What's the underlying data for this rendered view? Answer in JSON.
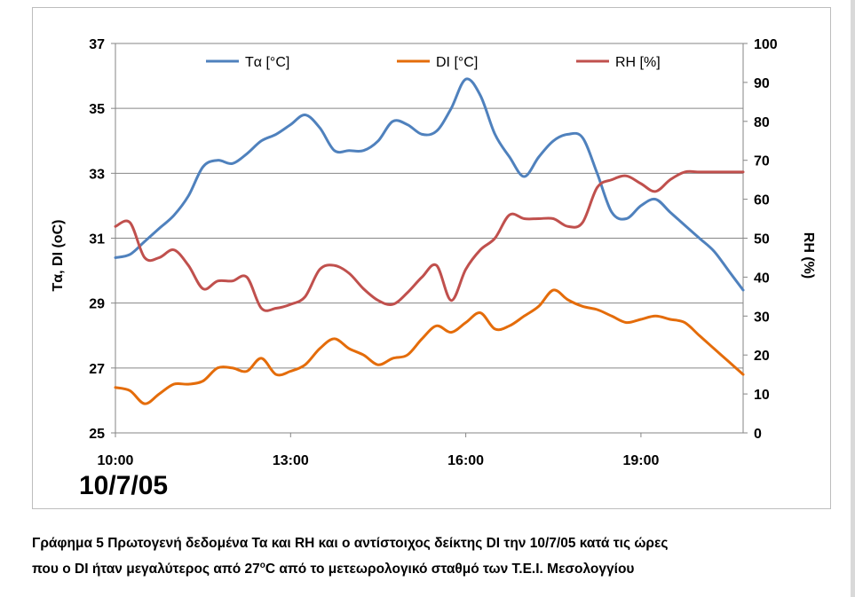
{
  "chart_data": {
    "type": "line",
    "x_ticks": [
      "10:00",
      "13:00",
      "16:00",
      "19:00"
    ],
    "y_left": {
      "label": "Tα, DI (oC)",
      "range": [
        25,
        37
      ],
      "ticks": [
        "25",
        "27",
        "29",
        "31",
        "33",
        "35",
        "37"
      ]
    },
    "y_right": {
      "label": "RH (%)",
      "range": [
        0,
        100
      ],
      "ticks": [
        "0",
        "10",
        "20",
        "30",
        "40",
        "50",
        "60",
        "70",
        "80",
        "90",
        "100"
      ]
    },
    "grid": true,
    "legend_position": "top",
    "annotation": "10/7/05",
    "series": [
      {
        "name": "Tα [°C]",
        "axis": "left",
        "color": "#4F81BD",
        "x": [
          "10:00",
          "10:15",
          "10:30",
          "10:45",
          "11:00",
          "11:15",
          "11:30",
          "11:45",
          "12:00",
          "12:15",
          "12:30",
          "12:45",
          "13:00",
          "13:15",
          "13:30",
          "13:45",
          "14:00",
          "14:15",
          "14:30",
          "14:45",
          "15:00",
          "15:15",
          "15:30",
          "15:45",
          "16:00",
          "16:15",
          "16:30",
          "16:45",
          "17:00",
          "17:15",
          "17:30",
          "17:45",
          "18:00",
          "18:15",
          "18:30",
          "18:45",
          "19:00",
          "19:15",
          "19:30",
          "19:45",
          "20:00",
          "20:15",
          "20:30",
          "20:45"
        ],
        "values": [
          30.4,
          30.5,
          30.9,
          31.3,
          31.7,
          32.3,
          33.2,
          33.4,
          33.3,
          33.6,
          34.0,
          34.2,
          34.5,
          34.8,
          34.4,
          33.7,
          33.7,
          33.7,
          34.0,
          34.6,
          34.5,
          34.2,
          34.3,
          35.0,
          35.9,
          35.4,
          34.2,
          33.5,
          32.9,
          33.5,
          34.0,
          34.2,
          34.1,
          33.0,
          31.8,
          31.6,
          32.0,
          32.2,
          31.8,
          31.4,
          31.0,
          30.6,
          30.0,
          29.4
        ]
      },
      {
        "name": "DI [°C]",
        "axis": "left",
        "color": "#E46C0A",
        "x": [
          "10:00",
          "10:15",
          "10:30",
          "10:45",
          "11:00",
          "11:15",
          "11:30",
          "11:45",
          "12:00",
          "12:15",
          "12:30",
          "12:45",
          "13:00",
          "13:15",
          "13:30",
          "13:45",
          "14:00",
          "14:15",
          "14:30",
          "14:45",
          "15:00",
          "15:15",
          "15:30",
          "15:45",
          "16:00",
          "16:15",
          "16:30",
          "16:45",
          "17:00",
          "17:15",
          "17:30",
          "17:45",
          "18:00",
          "18:15",
          "18:30",
          "18:45",
          "19:00",
          "19:15",
          "19:30",
          "19:45",
          "20:00",
          "20:15",
          "20:30",
          "20:45"
        ],
        "values": [
          26.4,
          26.3,
          25.9,
          26.2,
          26.5,
          26.5,
          26.6,
          27.0,
          27.0,
          26.9,
          27.3,
          26.8,
          26.9,
          27.1,
          27.6,
          27.9,
          27.6,
          27.4,
          27.1,
          27.3,
          27.4,
          27.9,
          28.3,
          28.1,
          28.4,
          28.7,
          28.2,
          28.3,
          28.6,
          28.9,
          29.4,
          29.1,
          28.9,
          28.8,
          28.6,
          28.4,
          28.5,
          28.6,
          28.5,
          28.4,
          28.0,
          27.6,
          27.2,
          26.8
        ]
      },
      {
        "name": "RH [%]",
        "axis": "right",
        "color": "#C0504D",
        "x": [
          "10:00",
          "10:15",
          "10:30",
          "10:45",
          "11:00",
          "11:15",
          "11:30",
          "11:45",
          "12:00",
          "12:15",
          "12:30",
          "12:45",
          "13:00",
          "13:15",
          "13:30",
          "13:45",
          "14:00",
          "14:15",
          "14:30",
          "14:45",
          "15:00",
          "15:15",
          "15:30",
          "15:45",
          "16:00",
          "16:15",
          "16:30",
          "16:45",
          "17:00",
          "17:15",
          "17:30",
          "17:45",
          "18:00",
          "18:15",
          "18:30",
          "18:45",
          "19:00",
          "19:15",
          "19:30",
          "19:45",
          "20:00",
          "20:15",
          "20:30",
          "20:45"
        ],
        "values": [
          53,
          54,
          45,
          45,
          47,
          43,
          37,
          39,
          39,
          40,
          32,
          32,
          33,
          35,
          42,
          43,
          41,
          37,
          34,
          33,
          36,
          40,
          43,
          34,
          42,
          47,
          50,
          56,
          55,
          55,
          55,
          53,
          54,
          63,
          65,
          66,
          64,
          62,
          65,
          67,
          67,
          67,
          67,
          67
        ]
      }
    ]
  },
  "caption": {
    "line1": "Γράφημα 5 Πρωτογενή δεδομένα Τα και RH και ο αντίστοιχος δείκτης DI την 10/7/05 κατά τις ώρες",
    "line2_pre": "που ο DI ήταν μεγαλύτερος από 27",
    "line2_sup": "o",
    "line2_post": "C από το μετεωρολογικό σταθμό των Τ.Ε.Ι. Μεσολογγίου"
  }
}
